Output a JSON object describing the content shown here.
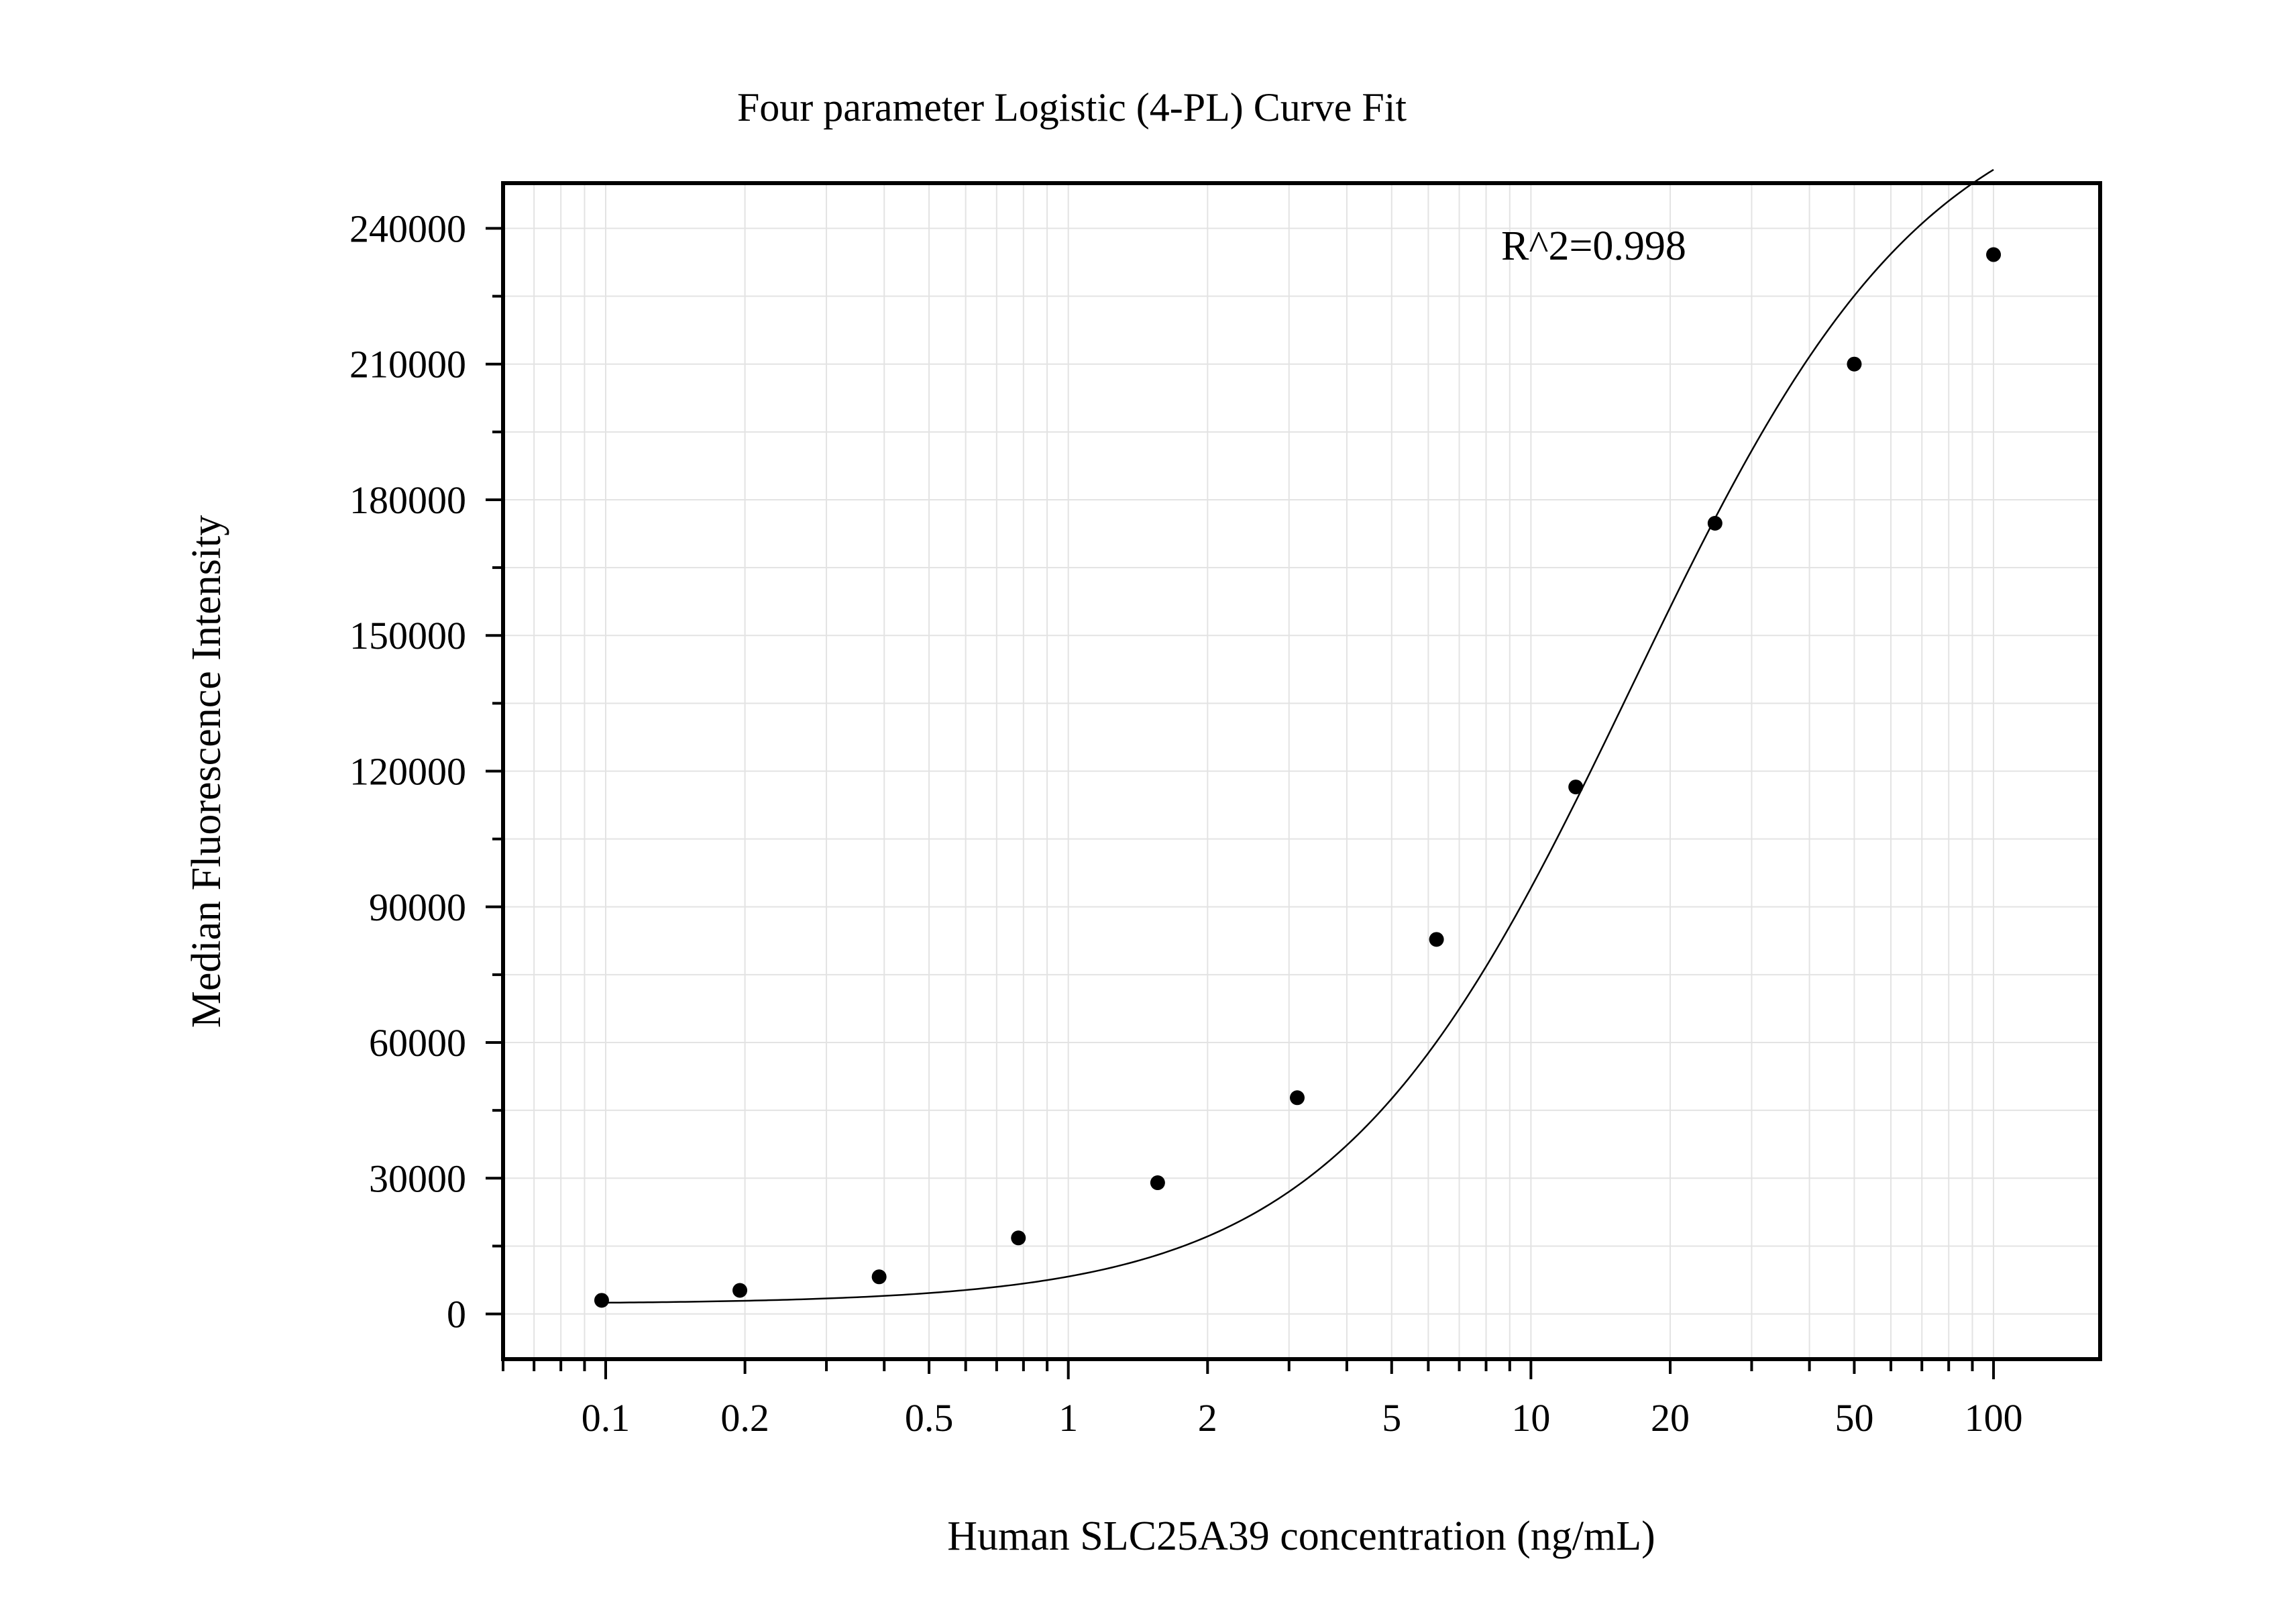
{
  "chart_data": {
    "type": "scatter",
    "title": "Four parameter Logistic (4-PL) Curve Fit",
    "xlabel": "Human SLC25A39 concentration (ng/mL)",
    "ylabel": "Median Fluorescence Intensity",
    "x_scale": "log",
    "xlim": [
      0.06,
      170
    ],
    "ylim": [
      -10000,
      250000
    ],
    "x_ticks": [
      0.1,
      0.2,
      0.5,
      1,
      2,
      5,
      10,
      20,
      50,
      100
    ],
    "x_tick_labels": [
      "0.1",
      "0.2",
      "0.5",
      "1",
      "2",
      "5",
      "10",
      "20",
      "50",
      "100"
    ],
    "y_ticks": [
      0,
      30000,
      60000,
      90000,
      120000,
      150000,
      180000,
      210000,
      240000
    ],
    "y_tick_labels": [
      "0",
      "30000",
      "60000",
      "90000",
      "120000",
      "150000",
      "180000",
      "210000",
      "240000"
    ],
    "grid": true,
    "annotation": "R^2=0.998",
    "series": [
      {
        "kind": "points",
        "x": [
          0.098,
          0.195,
          0.39,
          0.78,
          1.56,
          3.125,
          6.25,
          12.5,
          25,
          50,
          100
        ],
        "y": [
          3000,
          5200,
          8200,
          16800,
          29000,
          47800,
          82800,
          116500,
          174800,
          210000,
          234200
        ]
      },
      {
        "kind": "fit",
        "model": "4PL",
        "x_range": [
          0.098,
          100
        ],
        "A": 2200,
        "B": 1.35,
        "C": 16.5,
        "D": 275000
      }
    ],
    "colors": {
      "points": "#000000",
      "fit": "#000000",
      "grid": "#e3e3e3",
      "axis": "#000000"
    }
  }
}
